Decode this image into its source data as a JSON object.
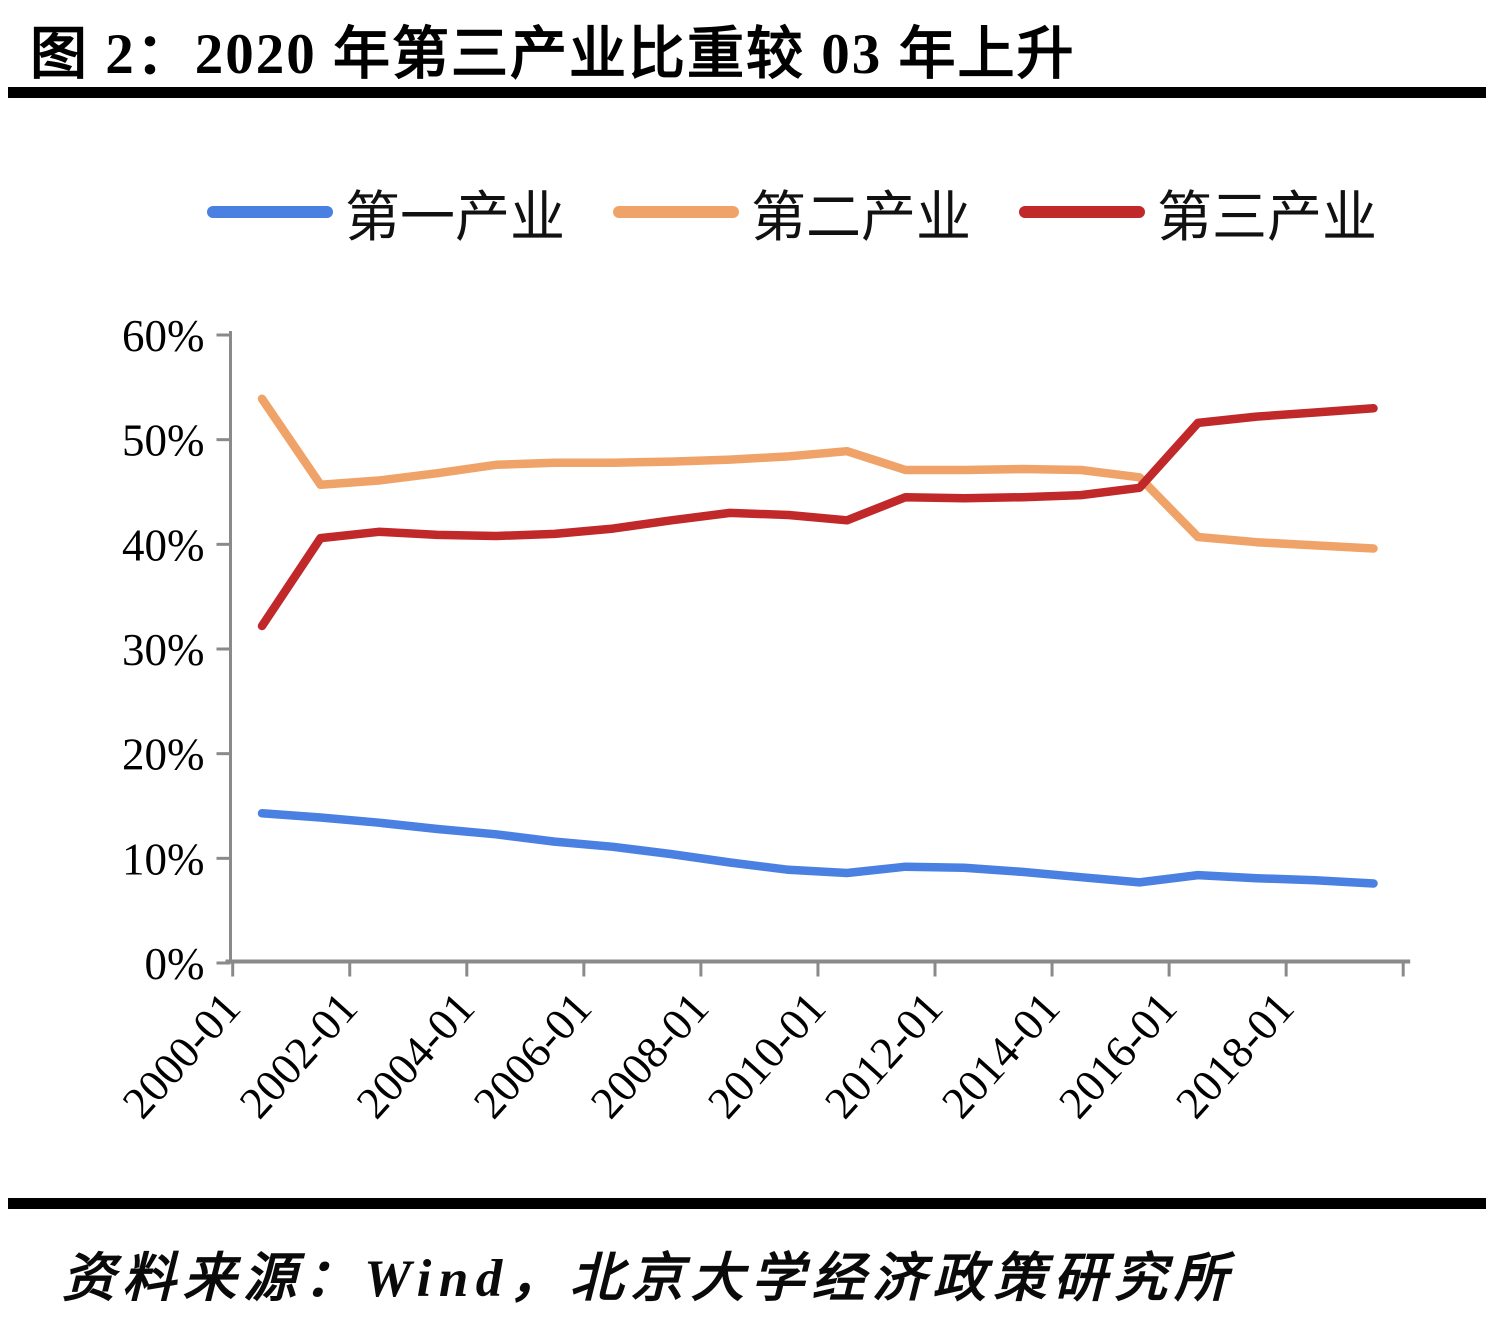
{
  "header": {
    "title": "图 2：2020 年第三产业比重较 03 年上升"
  },
  "footer": {
    "source": "资料来源：Wind，北京大学经济政策研究所"
  },
  "chart_data": {
    "type": "line",
    "title": "图 2：2020 年第三产业比重较 03 年上升",
    "xlabel": "",
    "ylabel": "",
    "ylim": [
      0,
      60
    ],
    "y_step": 10,
    "y_tick_suffix": "%",
    "grid": false,
    "legend_position": "top",
    "x_tick_labels": [
      "2000-01",
      "2002-01",
      "2004-01",
      "2006-01",
      "2008-01",
      "2010-01",
      "2012-01",
      "2014-01",
      "2016-01",
      "2018-01",
      ""
    ],
    "years": [
      2000,
      2001,
      2002,
      2003,
      2004,
      2005,
      2006,
      2007,
      2008,
      2009,
      2010,
      2011,
      2012,
      2013,
      2014,
      2015,
      2016,
      2017,
      2018,
      2019
    ],
    "series": [
      {
        "name": "第一产业",
        "color": "#4a80e1",
        "values": [
          14.3,
          13.9,
          13.4,
          12.8,
          12.3,
          11.6,
          11.1,
          10.4,
          9.6,
          8.9,
          8.6,
          9.2,
          9.1,
          8.7,
          8.2,
          7.7,
          8.4,
          8.1,
          7.9,
          7.6
        ]
      },
      {
        "name": "第二产业",
        "color": "#f0a368",
        "values": [
          53.9,
          45.7,
          46.1,
          46.8,
          47.6,
          47.8,
          47.8,
          47.9,
          48.1,
          48.4,
          48.9,
          47.1,
          47.1,
          47.2,
          47.1,
          46.4,
          40.7,
          40.2,
          39.9,
          39.6
        ]
      },
      {
        "name": "第三产业",
        "color": "#c1282a",
        "values": [
          32.2,
          40.6,
          41.2,
          40.9,
          40.8,
          41.0,
          41.5,
          42.3,
          43.0,
          42.8,
          42.3,
          44.5,
          44.4,
          44.5,
          44.7,
          45.4,
          51.6,
          52.2,
          52.6,
          53.0
        ]
      }
    ],
    "axis_color": "#8a8a8a",
    "tick_label_color": "#000000"
  }
}
